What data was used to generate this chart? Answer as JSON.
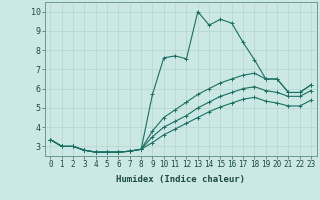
{
  "xlabel": "Humidex (Indice chaleur)",
  "xlim": [
    -0.5,
    23.5
  ],
  "ylim": [
    2.5,
    10.5
  ],
  "xticks": [
    0,
    1,
    2,
    3,
    4,
    5,
    6,
    7,
    8,
    9,
    10,
    11,
    12,
    13,
    14,
    15,
    16,
    17,
    18,
    19,
    20,
    21,
    22,
    23
  ],
  "yticks": [
    3,
    4,
    5,
    6,
    7,
    8,
    9,
    10
  ],
  "bg_color": "#cce8e4",
  "grid_color": "#b8d8d4",
  "line_color": "#1a6e64",
  "lines": [
    {
      "x": [
        0,
        1,
        2,
        3,
        4,
        5,
        6,
        7,
        8,
        9,
        10,
        11,
        12,
        13,
        14,
        15,
        16,
        17,
        18,
        19,
        20,
        21,
        22,
        23
      ],
      "y": [
        3.35,
        3.0,
        3.0,
        2.8,
        2.7,
        2.7,
        2.7,
        2.75,
        2.85,
        5.7,
        7.6,
        7.7,
        7.55,
        10.0,
        9.3,
        9.6,
        9.4,
        8.4,
        7.5,
        6.5,
        6.5,
        5.8,
        5.8,
        6.2
      ]
    },
    {
      "x": [
        0,
        1,
        2,
        3,
        4,
        5,
        6,
        7,
        8,
        9,
        10,
        11,
        12,
        13,
        14,
        15,
        16,
        17,
        18,
        19,
        20,
        21,
        22,
        23
      ],
      "y": [
        3.35,
        3.0,
        3.0,
        2.8,
        2.7,
        2.7,
        2.7,
        2.75,
        2.85,
        3.8,
        4.5,
        4.9,
        5.3,
        5.7,
        6.0,
        6.3,
        6.5,
        6.7,
        6.8,
        6.5,
        6.5,
        5.8,
        5.8,
        6.2
      ]
    },
    {
      "x": [
        0,
        1,
        2,
        3,
        4,
        5,
        6,
        7,
        8,
        9,
        10,
        11,
        12,
        13,
        14,
        15,
        16,
        17,
        18,
        19,
        20,
        21,
        22,
        23
      ],
      "y": [
        3.35,
        3.0,
        3.0,
        2.8,
        2.7,
        2.7,
        2.7,
        2.75,
        2.85,
        3.5,
        4.0,
        4.3,
        4.6,
        5.0,
        5.3,
        5.6,
        5.8,
        6.0,
        6.1,
        5.9,
        5.8,
        5.6,
        5.6,
        5.9
      ]
    },
    {
      "x": [
        0,
        1,
        2,
        3,
        4,
        5,
        6,
        7,
        8,
        9,
        10,
        11,
        12,
        13,
        14,
        15,
        16,
        17,
        18,
        19,
        20,
        21,
        22,
        23
      ],
      "y": [
        3.35,
        3.0,
        3.0,
        2.8,
        2.7,
        2.7,
        2.7,
        2.75,
        2.85,
        3.2,
        3.6,
        3.9,
        4.2,
        4.5,
        4.8,
        5.05,
        5.25,
        5.45,
        5.55,
        5.35,
        5.25,
        5.1,
        5.1,
        5.4
      ]
    }
  ]
}
